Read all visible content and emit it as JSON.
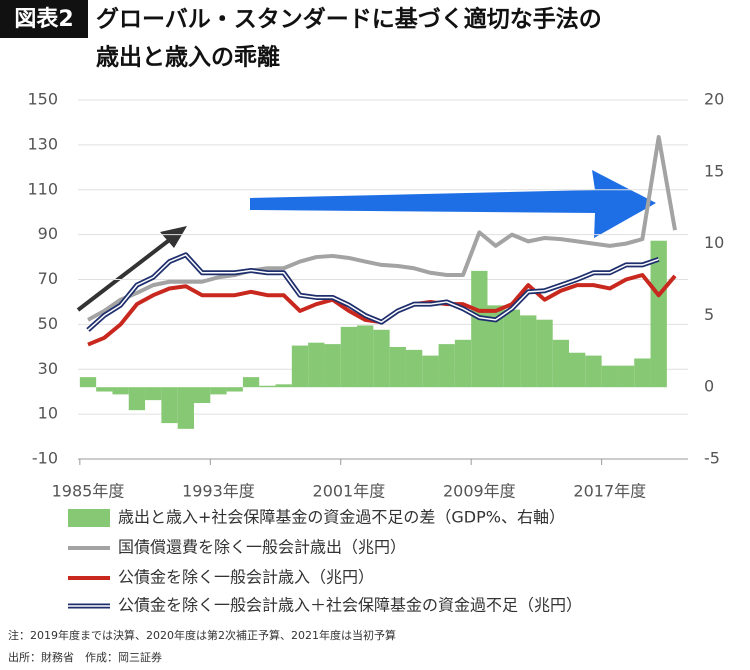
{
  "chart_data": {
    "type": "bar_line",
    "badge": "図表2",
    "title": [
      "グローバル・スタンダードに基づく適切な手法の",
      "歳出と歳入の乖離"
    ],
    "categories": [
      "1985年度",
      null,
      null,
      null,
      null,
      null,
      null,
      null,
      "1993年度",
      null,
      null,
      null,
      null,
      null,
      null,
      null,
      "2001年度",
      null,
      null,
      null,
      null,
      null,
      null,
      null,
      "2009年度",
      null,
      null,
      null,
      null,
      null,
      null,
      null,
      "2017年度",
      null,
      null,
      null,
      null
    ],
    "series": [
      {
        "name": "歳出と歳入+社会保障基金の資金過不足の差（GDP%、右軸）",
        "kind": "bar",
        "axis": "y2",
        "color": "#86c873",
        "values": [
          0.7,
          -0.3,
          -0.5,
          -1.6,
          -0.9,
          -2.5,
          -2.9,
          -1.1,
          -0.5,
          -0.3,
          0.7,
          0.1,
          0.2,
          2.9,
          3.1,
          3.0,
          4.2,
          4.3,
          4.0,
          2.8,
          2.6,
          2.2,
          3.0,
          3.3,
          8.1,
          5.7,
          5.4,
          5.0,
          4.7,
          3.3,
          2.4,
          2.2,
          1.5,
          1.5,
          2.0,
          10.2,
          null
        ]
      },
      {
        "name": "国債償還費を除く一般会計歳出（兆円）",
        "kind": "line",
        "color": "#a3a3a3",
        "values": [
          52,
          56,
          61,
          64,
          67.5,
          69,
          69,
          69,
          71,
          72,
          74,
          75,
          75,
          78,
          80,
          80.5,
          79.6,
          78,
          76.5,
          76,
          75,
          73,
          72,
          72,
          91,
          85,
          90,
          87,
          88.5,
          88,
          87,
          86,
          85,
          86,
          88,
          133.5,
          92
        ]
      },
      {
        "name": "公債金を除く一般会計歳入（兆円）",
        "kind": "line",
        "color": "#c8281e",
        "values": [
          41,
          44,
          50,
          59,
          63,
          66,
          67,
          63,
          63,
          63,
          64.5,
          63,
          63,
          56,
          59,
          61,
          56,
          52,
          51,
          56,
          59,
          60,
          59,
          59,
          56,
          56,
          59,
          67.5,
          61,
          65,
          67.5,
          67.5,
          66,
          70,
          72,
          63,
          71.6
        ]
      },
      {
        "name": "公債金を除く一般会計歳入＋社会保障基金の資金過不足（兆円）",
        "kind": "double_line",
        "color": "#1f2f6e",
        "values": [
          47.5,
          54,
          58.6,
          67.5,
          71,
          78,
          81,
          73,
          73,
          73,
          74,
          73,
          73,
          63,
          62,
          62,
          58.6,
          54,
          51,
          56,
          59,
          59,
          60,
          57,
          53,
          52,
          57,
          64.5,
          65,
          67.5,
          70,
          73,
          73,
          76.5,
          76.5,
          79,
          null
        ]
      }
    ],
    "ylim": [
      -10,
      150
    ],
    "yticks": [
      -10,
      10,
      30,
      50,
      70,
      90,
      110,
      130,
      150
    ],
    "y2lim": [
      -5,
      20
    ],
    "y2ticks": [
      -5,
      0,
      5,
      10,
      15,
      20
    ],
    "grid": true,
    "notes": [
      "注：2019年度までは決算、2020年度は第2次補正予算、2021年度は当初予算",
      "出所：財務省　作成：岡三証券"
    ]
  }
}
